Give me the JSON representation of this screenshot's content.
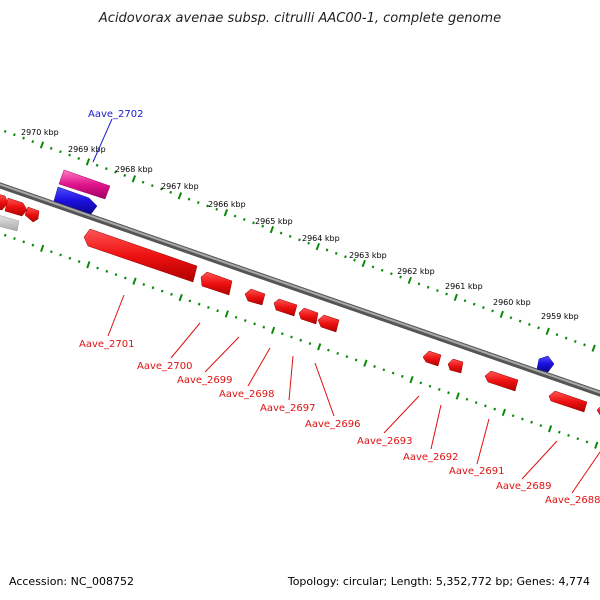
{
  "title": "Acidovorax avenae subsp. citrulli AAC00-1, complete genome",
  "footer": {
    "accession": "Accession: NC_008752",
    "summary": "Topology: circular; Length: 5,352,772 bp; Genes: 4,774"
  },
  "colors": {
    "forward_gene": "#1d10e0",
    "reverse_gene": "#ee1111",
    "rna_gene": "#e0148c",
    "other_gene": "#c8c8c8",
    "backbone": "#777777",
    "tick": "#0a8a0a",
    "label_forward": "#1a1ad0",
    "label_reverse": "#dd1111"
  },
  "scale_labels": [
    "2970 kbp",
    "2969 kbp",
    "2968 kbp",
    "2967 kbp",
    "2966 kbp",
    "2965 kbp",
    "2964 kbp",
    "2963 kbp",
    "2962 kbp",
    "2961 kbp",
    "2960 kbp",
    "2959 kbp"
  ],
  "gene_labels": {
    "forward": [
      "Aave_2702"
    ],
    "reverse": [
      "Aave_2701",
      "Aave_2700",
      "Aave_2699",
      "Aave_2698",
      "Aave_2697",
      "Aave_2696",
      "Aave_2693",
      "Aave_2692",
      "Aave_2691",
      "Aave_2689",
      "Aave_2688"
    ]
  }
}
